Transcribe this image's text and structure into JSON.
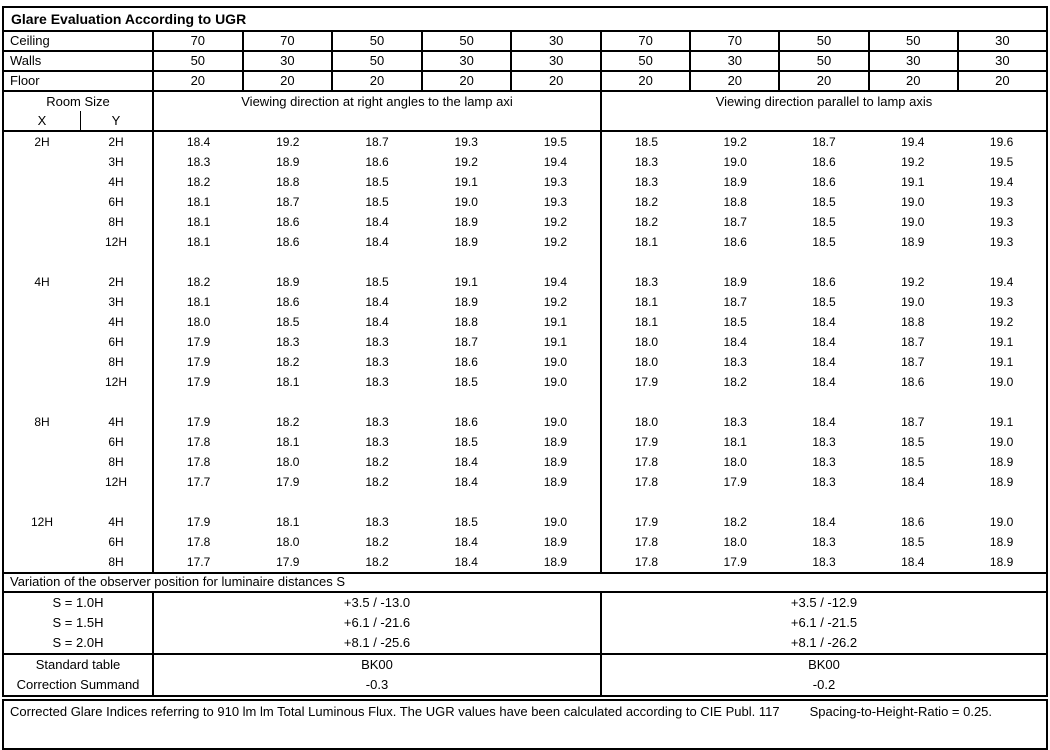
{
  "title": "Glare Evaluation According to UGR",
  "colors": {
    "background": "#ffffff",
    "text": "#000000",
    "border": "#000000"
  },
  "surfaces": {
    "rows": [
      {
        "label": "Ceiling",
        "values": [
          "70",
          "70",
          "50",
          "50",
          "30",
          "70",
          "70",
          "50",
          "50",
          "30"
        ]
      },
      {
        "label": "Walls",
        "values": [
          "50",
          "30",
          "50",
          "30",
          "30",
          "50",
          "30",
          "50",
          "30",
          "30"
        ]
      },
      {
        "label": "Floor",
        "values": [
          "20",
          "20",
          "20",
          "20",
          "20",
          "20",
          "20",
          "20",
          "20",
          "20"
        ]
      }
    ]
  },
  "header": {
    "room_size": "Room Size",
    "x_label": "X",
    "y_label": "Y",
    "left_direction": "Viewing direction at right angles to the lamp axi",
    "right_direction": "Viewing direction parallel to lamp axis"
  },
  "ugr_table": {
    "blocks": [
      {
        "x": "2H",
        "rows": [
          {
            "y": "2H",
            "values": [
              "18.4",
              "19.2",
              "18.7",
              "19.3",
              "19.5",
              "18.5",
              "19.2",
              "18.7",
              "19.4",
              "19.6"
            ]
          },
          {
            "y": "3H",
            "values": [
              "18.3",
              "18.9",
              "18.6",
              "19.2",
              "19.4",
              "18.3",
              "19.0",
              "18.6",
              "19.2",
              "19.5"
            ]
          },
          {
            "y": "4H",
            "values": [
              "18.2",
              "18.8",
              "18.5",
              "19.1",
              "19.3",
              "18.3",
              "18.9",
              "18.6",
              "19.1",
              "19.4"
            ]
          },
          {
            "y": "6H",
            "values": [
              "18.1",
              "18.7",
              "18.5",
              "19.0",
              "19.3",
              "18.2",
              "18.8",
              "18.5",
              "19.0",
              "19.3"
            ]
          },
          {
            "y": "8H",
            "values": [
              "18.1",
              "18.6",
              "18.4",
              "18.9",
              "19.2",
              "18.2",
              "18.7",
              "18.5",
              "19.0",
              "19.3"
            ]
          },
          {
            "y": "12H",
            "values": [
              "18.1",
              "18.6",
              "18.4",
              "18.9",
              "19.2",
              "18.1",
              "18.6",
              "18.5",
              "18.9",
              "19.3"
            ]
          }
        ]
      },
      {
        "x": "4H",
        "rows": [
          {
            "y": "2H",
            "values": [
              "18.2",
              "18.9",
              "18.5",
              "19.1",
              "19.4",
              "18.3",
              "18.9",
              "18.6",
              "19.2",
              "19.4"
            ]
          },
          {
            "y": "3H",
            "values": [
              "18.1",
              "18.6",
              "18.4",
              "18.9",
              "19.2",
              "18.1",
              "18.7",
              "18.5",
              "19.0",
              "19.3"
            ]
          },
          {
            "y": "4H",
            "values": [
              "18.0",
              "18.5",
              "18.4",
              "18.8",
              "19.1",
              "18.1",
              "18.5",
              "18.4",
              "18.8",
              "19.2"
            ]
          },
          {
            "y": "6H",
            "values": [
              "17.9",
              "18.3",
              "18.3",
              "18.7",
              "19.1",
              "18.0",
              "18.4",
              "18.4",
              "18.7",
              "19.1"
            ]
          },
          {
            "y": "8H",
            "values": [
              "17.9",
              "18.2",
              "18.3",
              "18.6",
              "19.0",
              "18.0",
              "18.3",
              "18.4",
              "18.7",
              "19.1"
            ]
          },
          {
            "y": "12H",
            "values": [
              "17.9",
              "18.1",
              "18.3",
              "18.5",
              "19.0",
              "17.9",
              "18.2",
              "18.4",
              "18.6",
              "19.0"
            ]
          }
        ]
      },
      {
        "x": "8H",
        "rows": [
          {
            "y": "4H",
            "values": [
              "17.9",
              "18.2",
              "18.3",
              "18.6",
              "19.0",
              "18.0",
              "18.3",
              "18.4",
              "18.7",
              "19.1"
            ]
          },
          {
            "y": "6H",
            "values": [
              "17.8",
              "18.1",
              "18.3",
              "18.5",
              "18.9",
              "17.9",
              "18.1",
              "18.3",
              "18.5",
              "19.0"
            ]
          },
          {
            "y": "8H",
            "values": [
              "17.8",
              "18.0",
              "18.2",
              "18.4",
              "18.9",
              "17.8",
              "18.0",
              "18.3",
              "18.5",
              "18.9"
            ]
          },
          {
            "y": "12H",
            "values": [
              "17.7",
              "17.9",
              "18.2",
              "18.4",
              "18.9",
              "17.8",
              "17.9",
              "18.3",
              "18.4",
              "18.9"
            ]
          }
        ]
      },
      {
        "x": "12H",
        "rows": [
          {
            "y": "4H",
            "values": [
              "17.9",
              "18.1",
              "18.3",
              "18.5",
              "19.0",
              "17.9",
              "18.2",
              "18.4",
              "18.6",
              "19.0"
            ]
          },
          {
            "y": "6H",
            "values": [
              "17.8",
              "18.0",
              "18.2",
              "18.4",
              "18.9",
              "17.8",
              "18.0",
              "18.3",
              "18.5",
              "18.9"
            ]
          },
          {
            "y": "8H",
            "values": [
              "17.7",
              "17.9",
              "18.2",
              "18.4",
              "18.9",
              "17.8",
              "17.9",
              "18.3",
              "18.4",
              "18.9"
            ]
          }
        ]
      }
    ]
  },
  "variation": {
    "header": "Variation of the observer position for luminaire distances S",
    "rows": [
      {
        "label": "S = 1.0H",
        "left": "+3.5 / -13.0",
        "right": "+3.5 / -12.9"
      },
      {
        "label": "S = 1.5H",
        "left": "+6.1 / -21.6",
        "right": "+6.1 / -21.5"
      },
      {
        "label": "S = 2.0H",
        "left": "+8.1 / -25.6",
        "right": "+8.1 / -26.2"
      }
    ]
  },
  "summary": {
    "rows": [
      {
        "label": "Standard table",
        "left": "BK00",
        "right": "BK00"
      },
      {
        "label": "Correction Summand",
        "left": "-0.3",
        "right": "-0.2"
      }
    ]
  },
  "footer": {
    "note": "Corrected Glare Indices referring to 910 lm lm Total Luminous Flux. The UGR values have been calculated according to CIE Publ. 117",
    "shr": "Spacing-to-Height-Ratio = 0.25."
  }
}
